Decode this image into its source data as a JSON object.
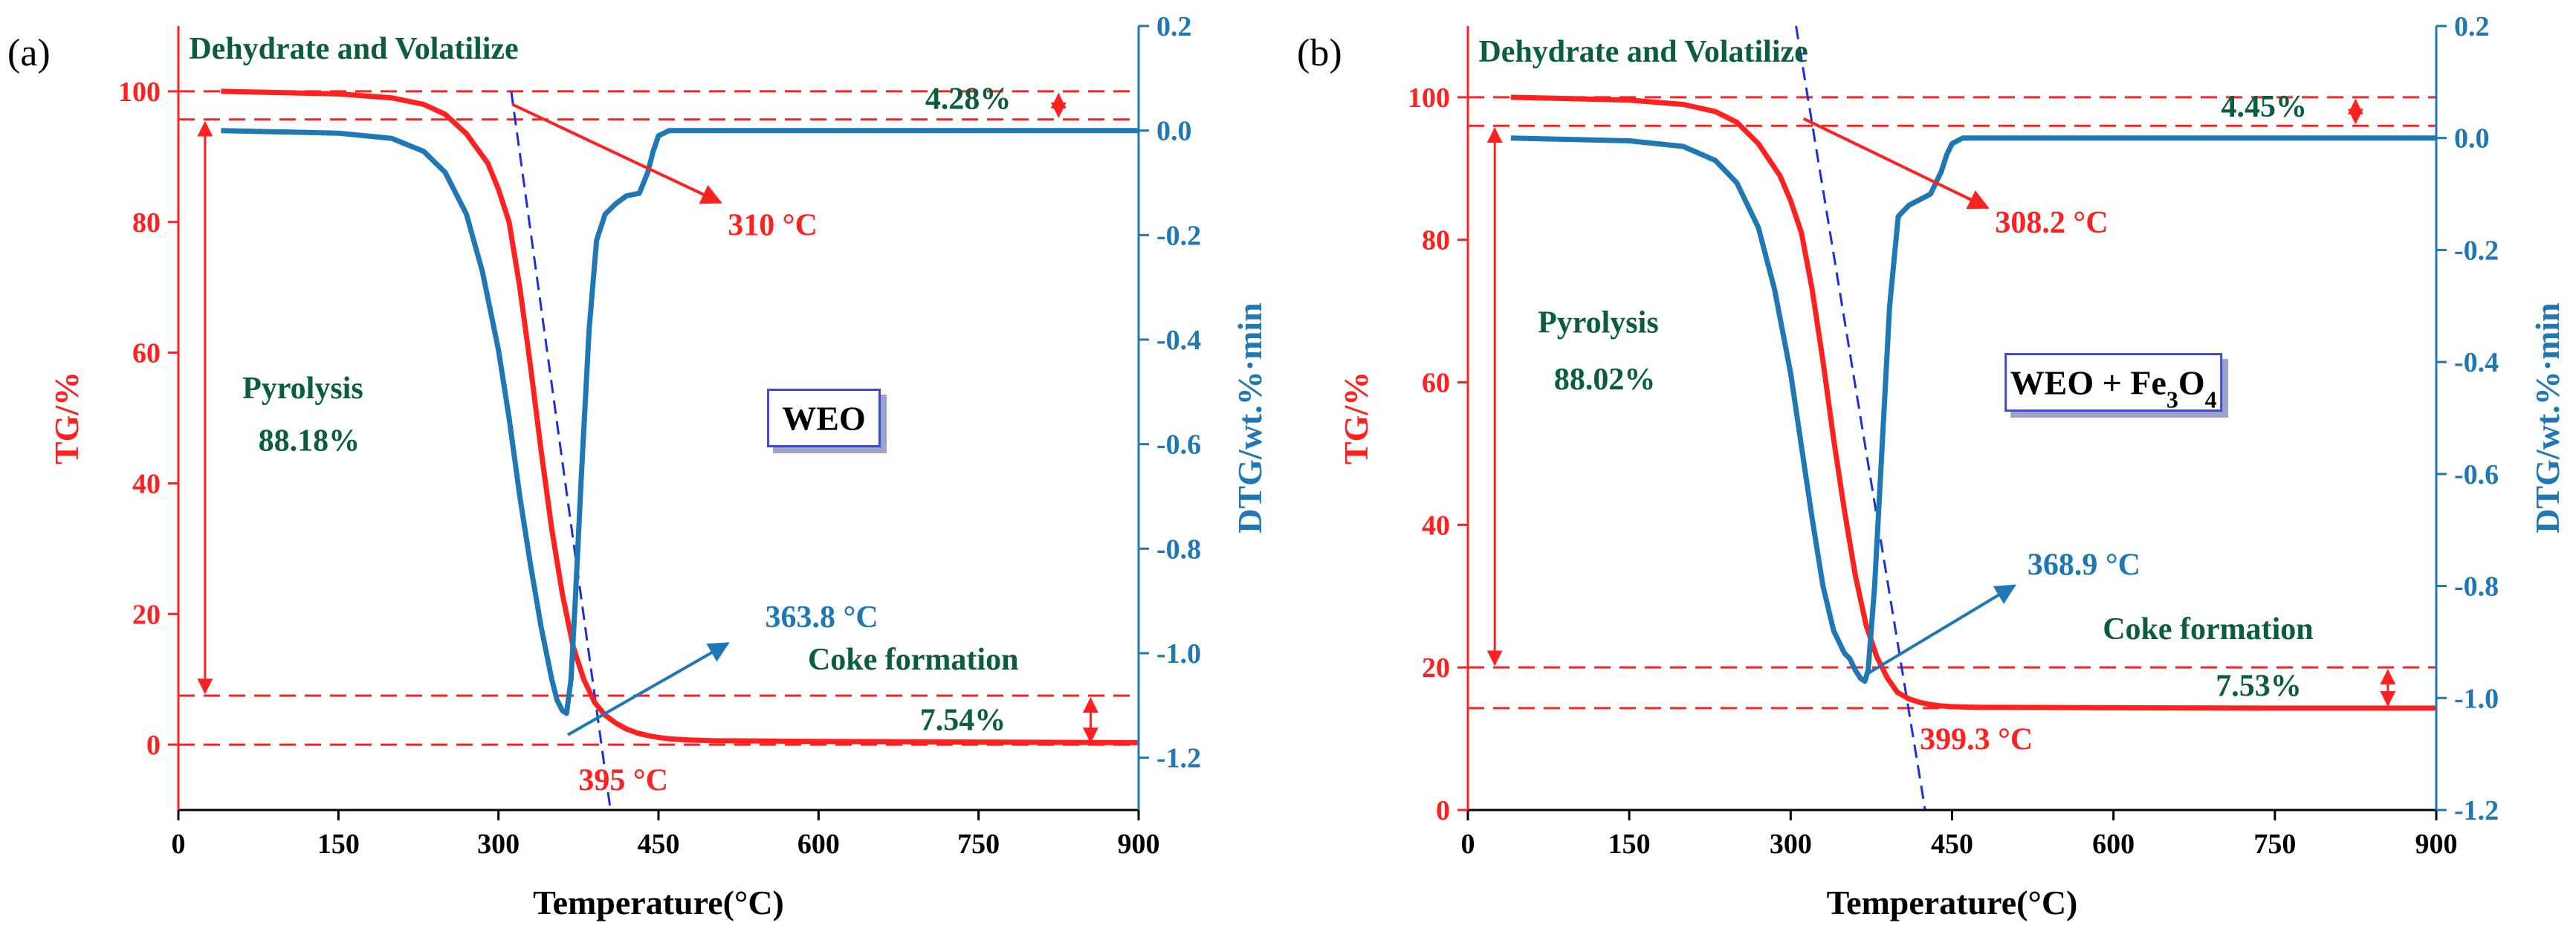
{
  "colors": {
    "tg": "#ff2020",
    "dtg": "#1f77b4",
    "ann_green": "#0b5e3b",
    "fit": "#1a2fe0",
    "axis": "#000000"
  },
  "chart_data": [
    {
      "type": "line",
      "panel_label": "(a)",
      "sample_label": "WEO",
      "sample_sub": "",
      "sample_tail": "",
      "xlabel": "Temperature(°C)",
      "ylabel_left": "TG/%",
      "ylabel_right": "DTG/wt.%·min",
      "xlim": [
        0,
        900
      ],
      "ylim_left": [
        -10,
        110
      ],
      "ylim_right": [
        -1.3,
        0.2
      ],
      "xticks": [
        "0",
        "150",
        "300",
        "450",
        "600",
        "750",
        "900"
      ],
      "xtick_values": [
        0,
        150,
        300,
        450,
        600,
        750,
        900
      ],
      "yticks_left": [
        "0",
        "20",
        "40",
        "60",
        "80",
        "100"
      ],
      "ytick_left_values": [
        0,
        20,
        40,
        60,
        80,
        100
      ],
      "yticks_right": [
        "0.2",
        "0.0",
        "-0.2",
        "-0.4",
        "-0.6",
        "-0.8",
        "-1.0",
        "-1.2"
      ],
      "ytick_right_values": [
        0.2,
        0.0,
        -0.2,
        -0.4,
        -0.6,
        -0.8,
        -1.0,
        -1.2
      ],
      "series": [
        {
          "name": "TG",
          "axis": "left",
          "x": [
            40,
            150,
            200,
            230,
            250,
            270,
            290,
            300,
            310,
            320,
            330,
            340,
            350,
            360,
            370,
            380,
            390,
            400,
            410,
            420,
            430,
            440,
            450,
            460,
            480,
            500,
            600,
            750,
            900
          ],
          "values": [
            100,
            99.6,
            99,
            98,
            96.5,
            93.5,
            89,
            85,
            80,
            70,
            58,
            45,
            33,
            23,
            15,
            10,
            6.5,
            4.5,
            3.3,
            2.4,
            1.8,
            1.4,
            1.1,
            0.9,
            0.7,
            0.6,
            0.5,
            0.4,
            0.3
          ]
        },
        {
          "name": "DTG",
          "axis": "right",
          "x": [
            40,
            150,
            200,
            230,
            250,
            270,
            285,
            300,
            310,
            320,
            330,
            340,
            350,
            355,
            360,
            363.8,
            368,
            372,
            378,
            385,
            392,
            400,
            410,
            420,
            432,
            440,
            445,
            450,
            460,
            480,
            600,
            900
          ],
          "values": [
            0,
            -0.005,
            -0.015,
            -0.04,
            -0.08,
            -0.16,
            -0.27,
            -0.42,
            -0.55,
            -0.7,
            -0.83,
            -0.95,
            -1.05,
            -1.09,
            -1.11,
            -1.115,
            -1.05,
            -0.9,
            -0.65,
            -0.38,
            -0.21,
            -0.16,
            -0.14,
            -0.125,
            -0.12,
            -0.08,
            -0.04,
            -0.01,
            0,
            0,
            0,
            0
          ]
        }
      ],
      "hlines_tg": [
        100,
        95.7,
        7.5,
        0
      ],
      "hline_right_end": 900,
      "fit_line": {
        "x": [
          312,
          405
        ],
        "y": [
          100,
          -10
        ]
      },
      "annotations": [
        {
          "text": "Dehydrate and Volatilize",
          "x": 10,
          "y": 105,
          "axis": "left",
          "color": "green"
        },
        {
          "text": "4.28%",
          "x": 700,
          "y": 97.3,
          "axis": "left",
          "color": "green"
        },
        {
          "text": "Pyrolysis",
          "x": 60,
          "y": 53,
          "axis": "left",
          "color": "green"
        },
        {
          "text": "88.18%",
          "x": 75,
          "y": 45,
          "axis": "left",
          "color": "green"
        },
        {
          "text": "Coke formation",
          "x": 590,
          "y": 11.5,
          "axis": "left",
          "color": "green"
        },
        {
          "text": "7.54%",
          "x": 695,
          "y": 2.2,
          "axis": "left",
          "color": "green"
        },
        {
          "text": "310 °C",
          "x": 515,
          "y": 78,
          "axis": "left",
          "color": "red"
        },
        {
          "text": "395 °C",
          "x": 375,
          "y": -7,
          "axis": "left",
          "color": "red"
        },
        {
          "text": "363.8 °C",
          "x": 550,
          "y": 18,
          "axis": "left",
          "color": "blue"
        }
      ],
      "arrows": [
        {
          "from": [
            313,
            98
          ],
          "to": [
            508,
            83
          ],
          "color": "red"
        },
        {
          "from": [
            365,
            1.5
          ],
          "to": [
            515,
            15.5
          ],
          "color": "blue"
        }
      ],
      "bracket_arrows": [
        {
          "x": 25,
          "y1": 95.7,
          "y2": 7.5
        },
        {
          "x": 825,
          "y1": 100,
          "y2": 95.7
        },
        {
          "x": 855,
          "y1": 7.5,
          "y2": 0
        }
      ],
      "sample_box": {
        "x": 605,
        "y": 50
      }
    },
    {
      "type": "line",
      "panel_label": "(b)",
      "sample_label": "WEO + Fe",
      "sample_sub": "3",
      "sample_tail": "O",
      "sample_sub2": "4",
      "xlabel": "Temperature(°C)",
      "ylabel_left": "TG/%",
      "ylabel_right": "DTG/wt.%·min",
      "xlim": [
        0,
        900
      ],
      "ylim_left": [
        0,
        110
      ],
      "ylim_right": [
        -1.2,
        0.2
      ],
      "xticks": [
        "0",
        "150",
        "300",
        "450",
        "600",
        "750",
        "900"
      ],
      "xtick_values": [
        0,
        150,
        300,
        450,
        600,
        750,
        900
      ],
      "yticks_left": [
        "0",
        "20",
        "40",
        "60",
        "80",
        "100"
      ],
      "ytick_left_values": [
        0,
        20,
        40,
        60,
        80,
        100
      ],
      "yticks_right": [
        "0.2",
        "0.0",
        "-0.2",
        "-0.4",
        "-0.6",
        "-0.8",
        "-1.0",
        "-1.2"
      ],
      "ytick_right_values": [
        0.2,
        0.0,
        -0.2,
        -0.4,
        -0.6,
        -0.8,
        -1.0,
        -1.2
      ],
      "series": [
        {
          "name": "TG",
          "axis": "left",
          "x": [
            40,
            150,
            200,
            230,
            250,
            270,
            290,
            300,
            310,
            320,
            330,
            340,
            350,
            360,
            370,
            380,
            390,
            399.3,
            410,
            420,
            430,
            440,
            450,
            460,
            480,
            500,
            600,
            750,
            900
          ],
          "values": [
            100,
            99.6,
            99,
            98,
            96.5,
            93.5,
            89,
            85.5,
            81,
            73,
            63,
            52,
            42,
            33,
            26,
            21.5,
            18.5,
            16.5,
            15.6,
            15.1,
            14.8,
            14.6,
            14.5,
            14.45,
            14.4,
            14.4,
            14.35,
            14.3,
            14.3
          ]
        },
        {
          "name": "DTG",
          "axis": "right",
          "x": [
            40,
            150,
            200,
            230,
            250,
            270,
            285,
            300,
            310,
            320,
            330,
            340,
            350,
            355,
            360,
            365,
            368.9,
            372,
            378,
            385,
            392,
            400,
            410,
            420,
            430,
            440,
            445,
            450,
            460,
            480,
            600,
            900
          ],
          "values": [
            0,
            -0.005,
            -0.015,
            -0.04,
            -0.08,
            -0.16,
            -0.27,
            -0.42,
            -0.55,
            -0.68,
            -0.8,
            -0.88,
            -0.92,
            -0.93,
            -0.95,
            -0.965,
            -0.97,
            -0.95,
            -0.8,
            -0.55,
            -0.3,
            -0.14,
            -0.12,
            -0.11,
            -0.1,
            -0.06,
            -0.03,
            -0.01,
            0,
            0,
            0,
            0
          ]
        }
      ],
      "hlines_tg": [
        100,
        96,
        20,
        14.3
      ],
      "hline_right_end": 900,
      "fit_line": {
        "x": [
          305,
          425
        ],
        "y": [
          110,
          0
        ]
      },
      "annotations": [
        {
          "text": "Dehydrate and Volatilize",
          "x": 10,
          "y": 105,
          "axis": "left",
          "color": "green"
        },
        {
          "text": "4.45%",
          "x": 700,
          "y": 97.3,
          "axis": "left",
          "color": "green"
        },
        {
          "text": "Pyrolysis",
          "x": 65,
          "y": 67,
          "axis": "left",
          "color": "green"
        },
        {
          "text": "88.02%",
          "x": 80,
          "y": 59,
          "axis": "left",
          "color": "green"
        },
        {
          "text": "Coke formation",
          "x": 590,
          "y": 24,
          "axis": "left",
          "color": "green"
        },
        {
          "text": "7.53%",
          "x": 695,
          "y": 16,
          "axis": "left",
          "color": "green"
        },
        {
          "text": "308.2 °C",
          "x": 490,
          "y": 81,
          "axis": "left",
          "color": "red"
        },
        {
          "text": "399.3 °C",
          "x": 420,
          "y": 8.5,
          "axis": "left",
          "color": "red"
        },
        {
          "text": "368.9 °C",
          "x": 520,
          "y": 33,
          "axis": "left",
          "color": "blue"
        }
      ],
      "arrows": [
        {
          "from": [
            312,
            97
          ],
          "to": [
            483,
            84.5
          ],
          "color": "red"
        },
        {
          "from": [
            370,
            19
          ],
          "to": [
            508,
            31.5
          ],
          "color": "blue"
        }
      ],
      "bracket_arrows": [
        {
          "x": 25,
          "y1": 96,
          "y2": 20
        },
        {
          "x": 825,
          "y1": 100,
          "y2": 96
        },
        {
          "x": 855,
          "y1": 20,
          "y2": 14.3
        }
      ],
      "sample_box": {
        "x": 600,
        "y": 60
      }
    }
  ]
}
